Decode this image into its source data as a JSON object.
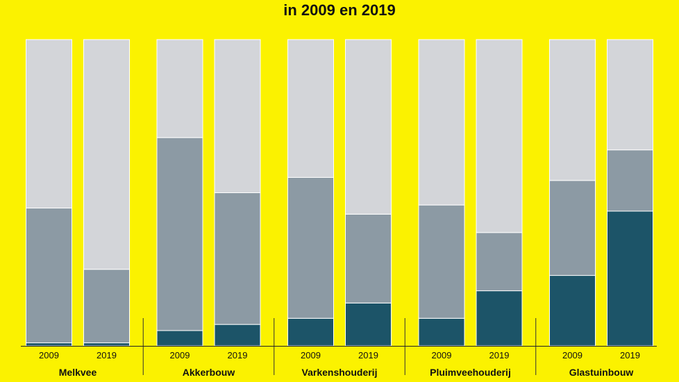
{
  "title": "in 2009 en 2019",
  "colors": {
    "background": "#FBF200",
    "segment_top": "#D3D5D9",
    "segment_middle": "#8C9AA4",
    "segment_bottom": "#1C5468"
  },
  "chart_data": {
    "type": "bar",
    "stacked": true,
    "normalized": true,
    "title": "in 2009 en 2019",
    "ylim": [
      0,
      100
    ],
    "grid": false,
    "groups": [
      {
        "name": "Melkvee",
        "bars": [
          {
            "label": "2009",
            "values": [
              1,
              44,
              55
            ]
          },
          {
            "label": "2019",
            "values": [
              1,
              24,
              75
            ]
          }
        ]
      },
      {
        "name": "Akkerbouw",
        "bars": [
          {
            "label": "2009",
            "values": [
              5,
              63,
              32
            ]
          },
          {
            "label": "2019",
            "values": [
              7,
              43,
              50
            ]
          }
        ]
      },
      {
        "name": "Varkenshouderij",
        "bars": [
          {
            "label": "2009",
            "values": [
              9,
              46,
              45
            ]
          },
          {
            "label": "2019",
            "values": [
              14,
              29,
              57
            ]
          }
        ]
      },
      {
        "name": "Pluimveehouderij",
        "bars": [
          {
            "label": "2009",
            "values": [
              9,
              37,
              54
            ]
          },
          {
            "label": "2019",
            "values": [
              18,
              19,
              63
            ]
          }
        ]
      },
      {
        "name": "Glastuinbouw",
        "bars": [
          {
            "label": "2009",
            "values": [
              23,
              31,
              46
            ]
          },
          {
            "label": "2019",
            "values": [
              44,
              20,
              36
            ]
          }
        ]
      }
    ]
  }
}
